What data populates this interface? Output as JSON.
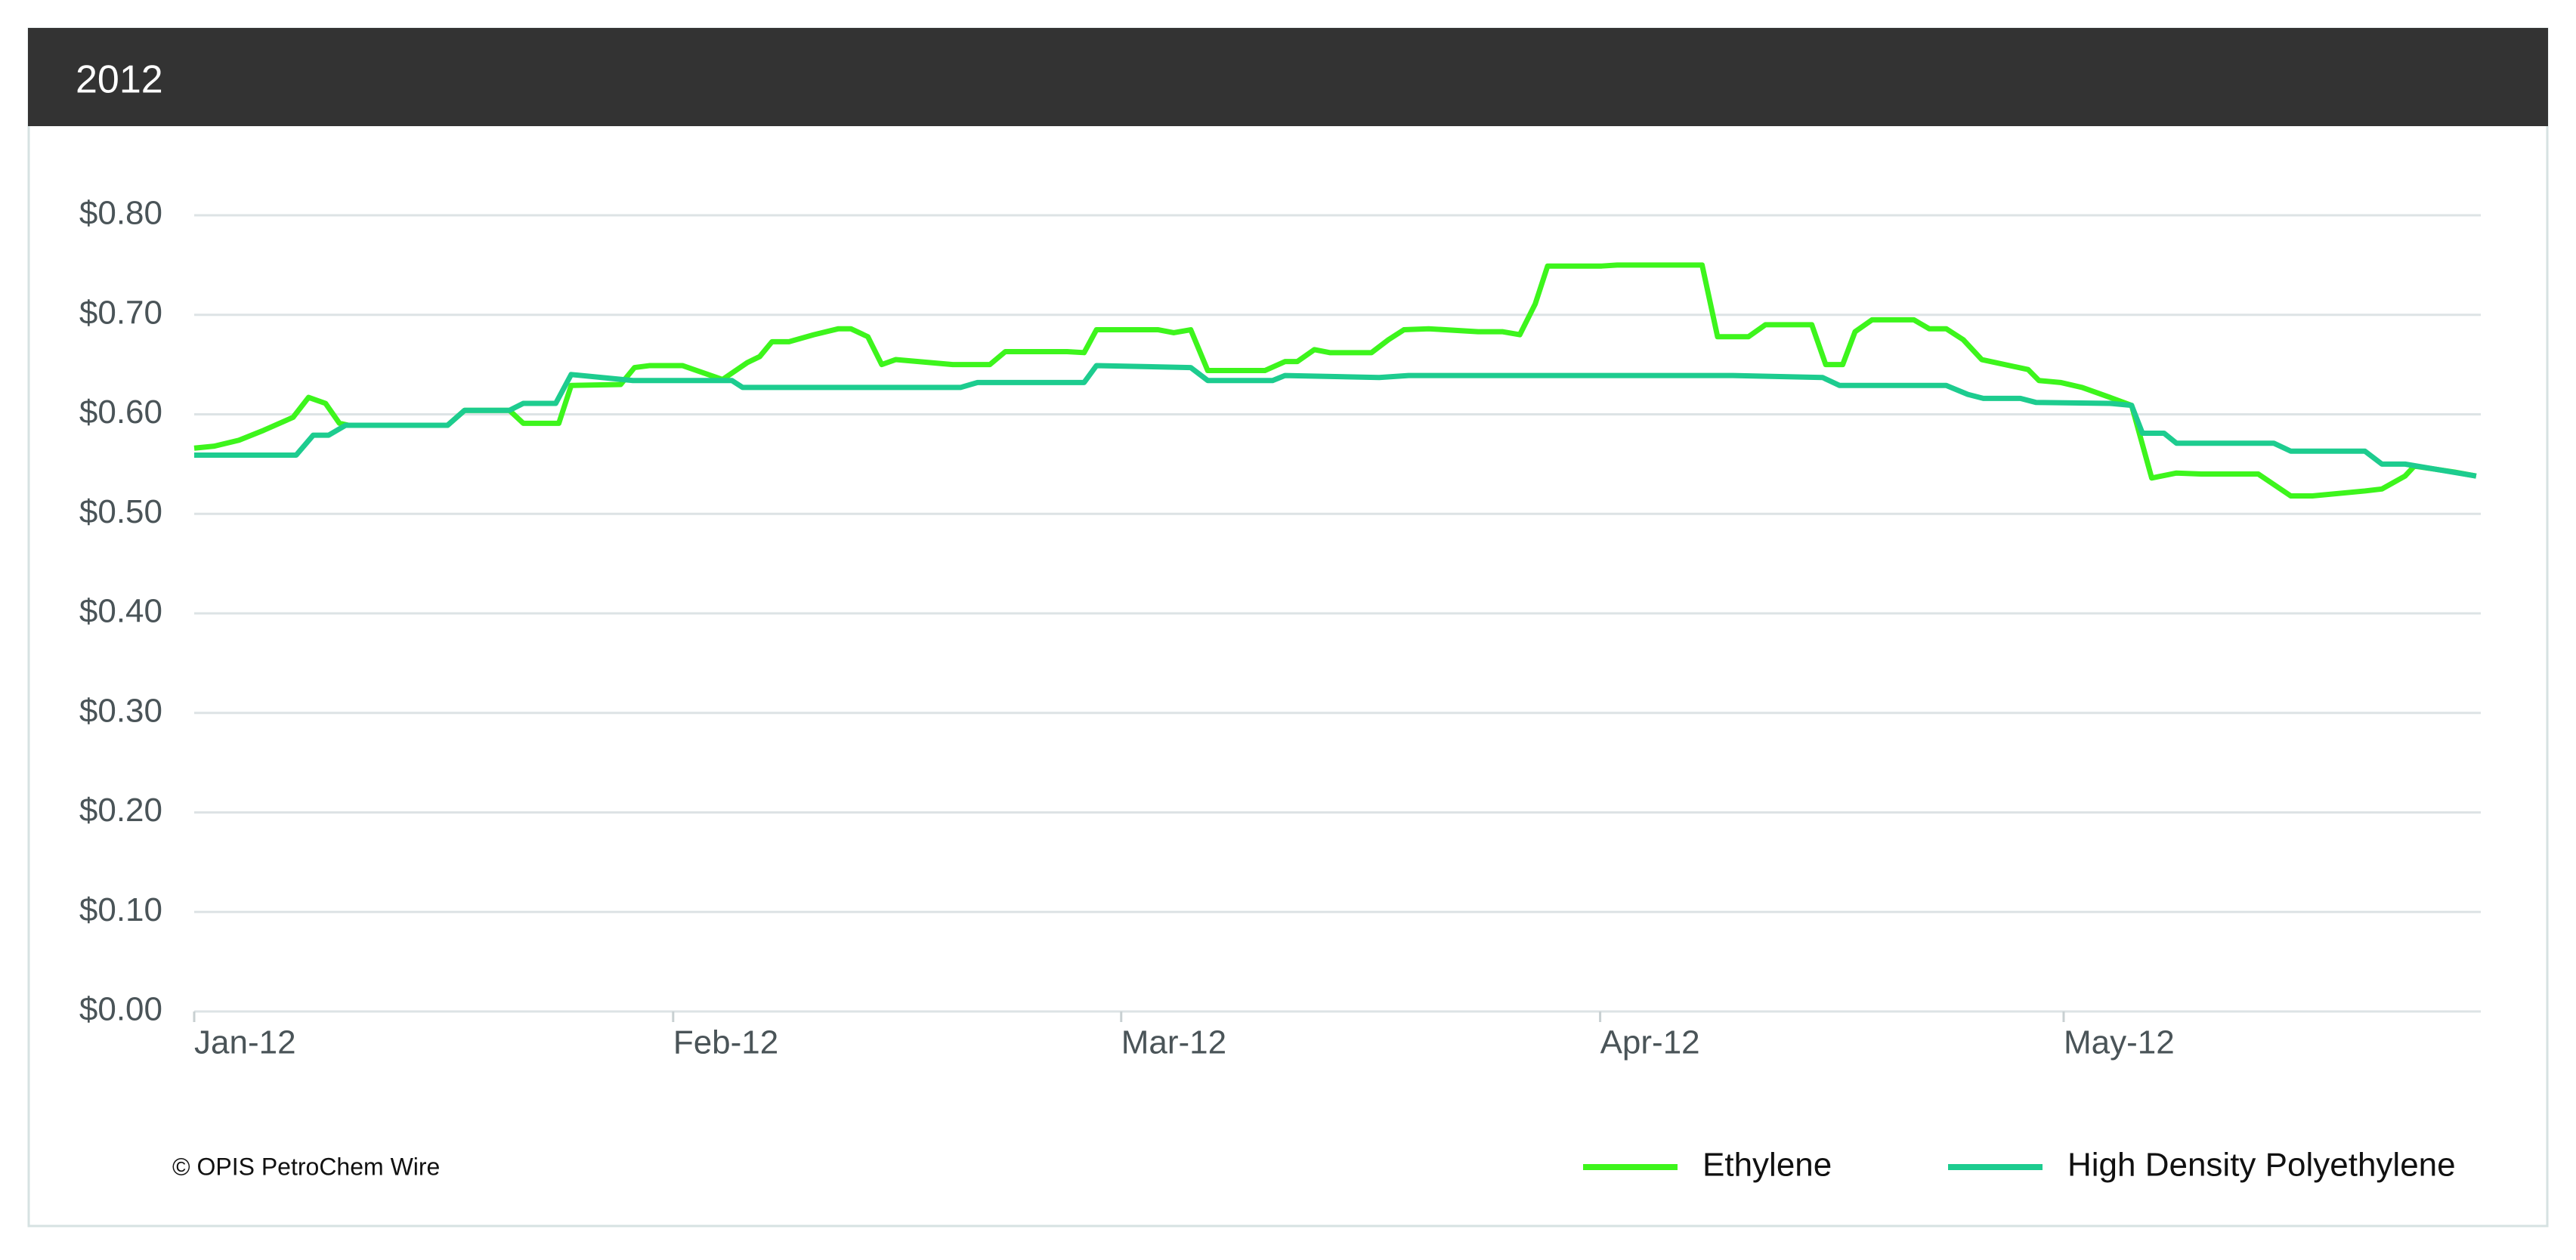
{
  "chart_data": {
    "type": "line",
    "title": "2012",
    "source": "© OPIS PetroChem Wire",
    "xlim": [
      0,
      148
    ],
    "xticks": [
      {
        "value": 0,
        "label": "Jan-12"
      },
      {
        "value": 31,
        "label": "Feb-12"
      },
      {
        "value": 60,
        "label": "Mar-12"
      },
      {
        "value": 91,
        "label": "Apr-12"
      },
      {
        "value": 121,
        "label": "May-12"
      }
    ],
    "ylim": [
      0,
      0.8
    ],
    "yticks": [
      {
        "value": 0,
        "label": "$0.00"
      },
      {
        "value": 0.1,
        "label": "$0.10"
      },
      {
        "value": 0.2,
        "label": "$0.20"
      },
      {
        "value": 0.3,
        "label": "$0.30"
      },
      {
        "value": 0.4,
        "label": "$0.40"
      },
      {
        "value": 0.5,
        "label": "$0.50"
      },
      {
        "value": 0.6,
        "label": "$0.60"
      },
      {
        "value": 0.7,
        "label": "$0.70"
      },
      {
        "value": 0.8,
        "label": "$0.80"
      }
    ],
    "grid": true,
    "legend": "bottom-right",
    "series": [
      {
        "name": "Ethylene",
        "color": "#3df51c",
        "x": [
          0.0,
          1.3,
          2.9,
          4.5,
          6.4,
          7.4,
          8.5,
          9.4,
          10.0,
          16.4,
          17.5,
          20.4,
          21.3,
          23.6,
          24.4,
          27.6,
          28.5,
          29.5,
          31.6,
          34.2,
          35.8,
          36.6,
          37.4,
          38.5,
          40.1,
          41.7,
          42.5,
          43.6,
          44.5,
          45.4,
          49.1,
          51.5,
          52.5,
          56.5,
          57.6,
          58.4,
          62.4,
          63.4,
          64.5,
          65.6,
          69.3,
          70.6,
          71.4,
          72.5,
          73.5,
          76.2,
          77.3,
          78.3,
          79.9,
          83.1,
          84.7,
          85.8,
          86.8,
          87.6,
          91.1,
          92.1,
          97.6,
          98.6,
          100.6,
          101.7,
          104.7,
          105.6,
          106.7,
          107.5,
          108.6,
          111.3,
          112.3,
          113.4,
          114.5,
          115.7,
          118.7,
          119.4,
          120.8,
          122.2,
          124.0,
          125.4,
          126.7,
          128.3,
          129.9,
          133.6,
          135.7,
          137.1,
          140.5,
          141.6,
          143.1,
          143.7,
          146.3,
          147.7
        ],
        "values": [
          0.566,
          0.568,
          0.574,
          0.584,
          0.597,
          0.617,
          0.611,
          0.591,
          0.589,
          0.589,
          0.604,
          0.604,
          0.591,
          0.591,
          0.629,
          0.63,
          0.647,
          0.649,
          0.649,
          0.635,
          0.652,
          0.658,
          0.673,
          0.673,
          0.68,
          0.686,
          0.686,
          0.678,
          0.65,
          0.655,
          0.65,
          0.65,
          0.663,
          0.663,
          0.662,
          0.685,
          0.685,
          0.682,
          0.685,
          0.644,
          0.644,
          0.653,
          0.653,
          0.665,
          0.662,
          0.662,
          0.675,
          0.685,
          0.686,
          0.683,
          0.683,
          0.68,
          0.711,
          0.749,
          0.749,
          0.75,
          0.75,
          0.678,
          0.678,
          0.69,
          0.69,
          0.65,
          0.65,
          0.683,
          0.695,
          0.695,
          0.686,
          0.686,
          0.675,
          0.655,
          0.645,
          0.634,
          0.632,
          0.627,
          0.617,
          0.609,
          0.536,
          0.541,
          0.54,
          0.54,
          0.518,
          0.518,
          0.523,
          0.525,
          0.538,
          0.548,
          0.542,
          0.538
        ]
      },
      {
        "name": "High Density Polyethylene",
        "color": "#1dcc8f",
        "x": [
          0.0,
          6.6,
          7.7,
          8.7,
          9.8,
          16.4,
          17.5,
          20.4,
          21.3,
          23.4,
          24.4,
          28.4,
          34.8,
          35.5,
          49.6,
          50.7,
          57.6,
          58.4,
          64.5,
          65.6,
          69.8,
          70.6,
          76.7,
          78.6,
          99.6,
          105.4,
          106.5,
          113.4,
          114.8,
          115.8,
          118.2,
          119.2,
          124.0,
          125.4,
          126.1,
          127.5,
          128.3,
          134.6,
          135.7,
          140.5,
          141.6,
          143.1,
          147.7
        ],
        "values": [
          0.559,
          0.559,
          0.579,
          0.579,
          0.589,
          0.589,
          0.604,
          0.604,
          0.611,
          0.611,
          0.64,
          0.634,
          0.634,
          0.627,
          0.627,
          0.632,
          0.632,
          0.649,
          0.647,
          0.634,
          0.634,
          0.639,
          0.637,
          0.639,
          0.639,
          0.637,
          0.629,
          0.629,
          0.62,
          0.616,
          0.616,
          0.612,
          0.611,
          0.609,
          0.581,
          0.581,
          0.571,
          0.571,
          0.563,
          0.563,
          0.55,
          0.55,
          0.538
        ]
      }
    ]
  }
}
